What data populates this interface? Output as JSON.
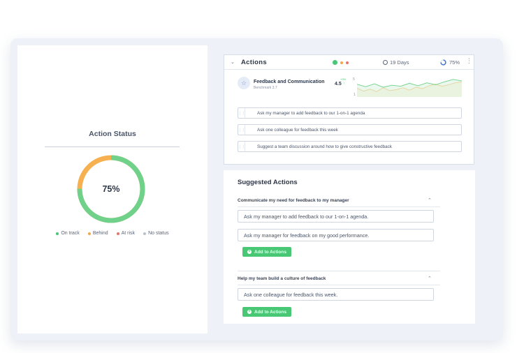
{
  "left": {
    "title": "Action Status",
    "progress_label": "75%",
    "progress_fraction": 0.75,
    "legend": [
      {
        "label": "On track",
        "color": "#48c774"
      },
      {
        "label": "Behind",
        "color": "#f6a64a"
      },
      {
        "label": "At risk",
        "color": "#e8736b"
      },
      {
        "label": "No status",
        "color": "#b9c1cd"
      }
    ],
    "colors": {
      "on_track": "#6fd18a",
      "behind": "#f6b04f"
    }
  },
  "actions": {
    "title": "Actions",
    "status_colors": [
      "#48c774",
      "#f6a64a",
      "#e8736b"
    ],
    "days_label": "19 Days",
    "percent_label": "75%",
    "metric": {
      "icon": "star-icon",
      "title": "Feedback and Communication",
      "subtitle": "Benchmark 3.7",
      "value": "4.5",
      "delta": "+9%",
      "axis_top": "5",
      "axis_bottom": "1"
    },
    "sparkline": {
      "green": [
        3.6,
        3.1,
        3.7,
        3.0,
        3.4,
        3.2,
        3.8,
        3.3,
        3.9,
        3.5,
        4.1,
        4.6,
        4.3
      ],
      "orange": [
        2.8,
        2.2,
        2.6,
        2.1,
        2.9,
        2.3,
        2.5,
        2.9,
        2.4,
        3.0,
        2.7,
        3.3,
        3.6,
        3.2,
        3.5,
        3.9,
        4.1
      ]
    },
    "items": [
      "Ask my manager to add feedback to our 1-on-1 agenda",
      "Ask one colleague for feedback this week",
      "Suggest a team discussion around how to give constructive feedback"
    ]
  },
  "suggested": {
    "title": "Suggested Actions",
    "groups": [
      {
        "title": "Communicate my need for feedback to my manager",
        "items": [
          "Ask my manager to add feedback to our 1-on-1 agenda.",
          "Ask my manager for feedback on my good performance."
        ],
        "button": "Add to Actions"
      },
      {
        "title": "Help my team build a culture of feedback",
        "items": [
          "Ask one colleague for feedback this week."
        ],
        "button": "Add to Actions"
      }
    ]
  }
}
